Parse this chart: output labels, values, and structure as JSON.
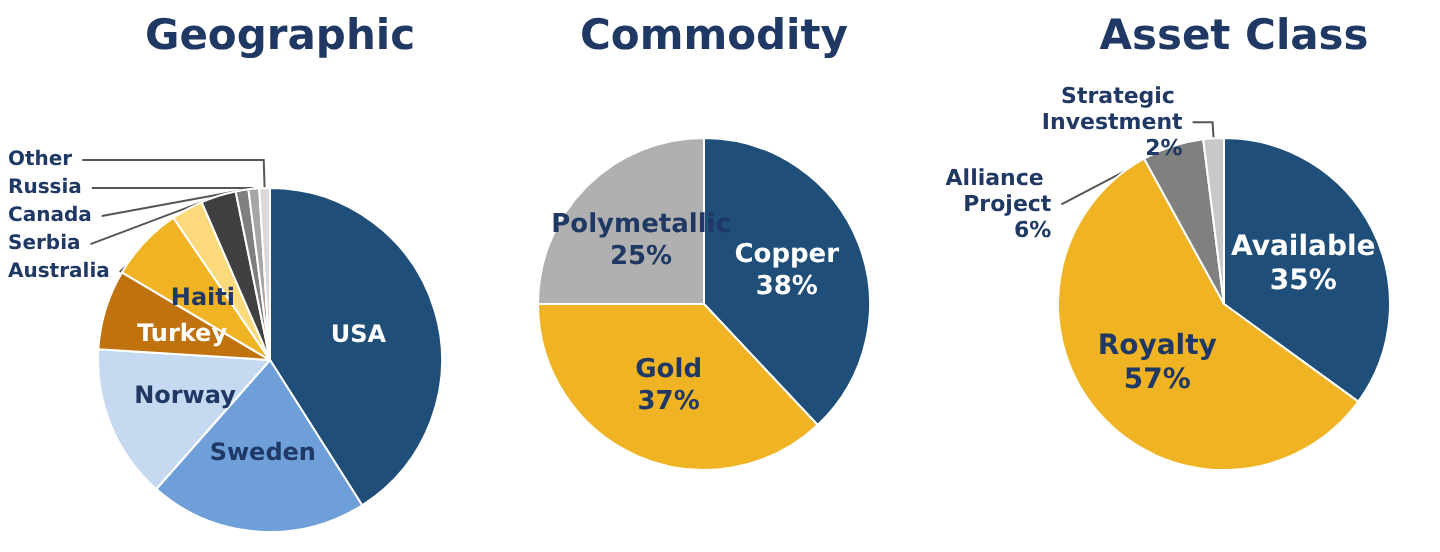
{
  "chart_data": [
    {
      "type": "pie",
      "title": "Geographic",
      "categories": [
        "USA",
        "Sweden",
        "Norway",
        "Turkey",
        "Haiti",
        "Australia",
        "Serbia",
        "Canada",
        "Russia",
        "Other"
      ],
      "values": [
        41,
        20.5,
        14.5,
        7.5,
        7,
        3,
        3.3,
        1.2,
        1,
        1
      ],
      "colors": [
        "#1f4e79",
        "#6f9fd8",
        "#c5d9f1",
        "#c0720f",
        "#f0b323",
        "#fcd97a",
        "#404040",
        "#7f7f7f",
        "#a6a6a6",
        "#d9d9d9"
      ]
    },
    {
      "type": "pie",
      "title": "Commodity",
      "categories": [
        "Copper",
        "Gold",
        "Polymetallic"
      ],
      "values": [
        38,
        37,
        25
      ],
      "colors": [
        "#1f4e79",
        "#f0b323",
        "#b0b0b0"
      ],
      "value_labels": [
        "38%",
        "37%",
        "25%"
      ]
    },
    {
      "type": "pie",
      "title": "Asset Class",
      "categories": [
        "Available",
        "Royalty",
        "Alliance Project",
        "Strategic Investment"
      ],
      "values": [
        35,
        57,
        6,
        2
      ],
      "colors": [
        "#1f4e79",
        "#f0b323",
        "#808080",
        "#c8c8c8"
      ],
      "value_labels": [
        "35%",
        "57%",
        "6%",
        "2%"
      ]
    }
  ]
}
